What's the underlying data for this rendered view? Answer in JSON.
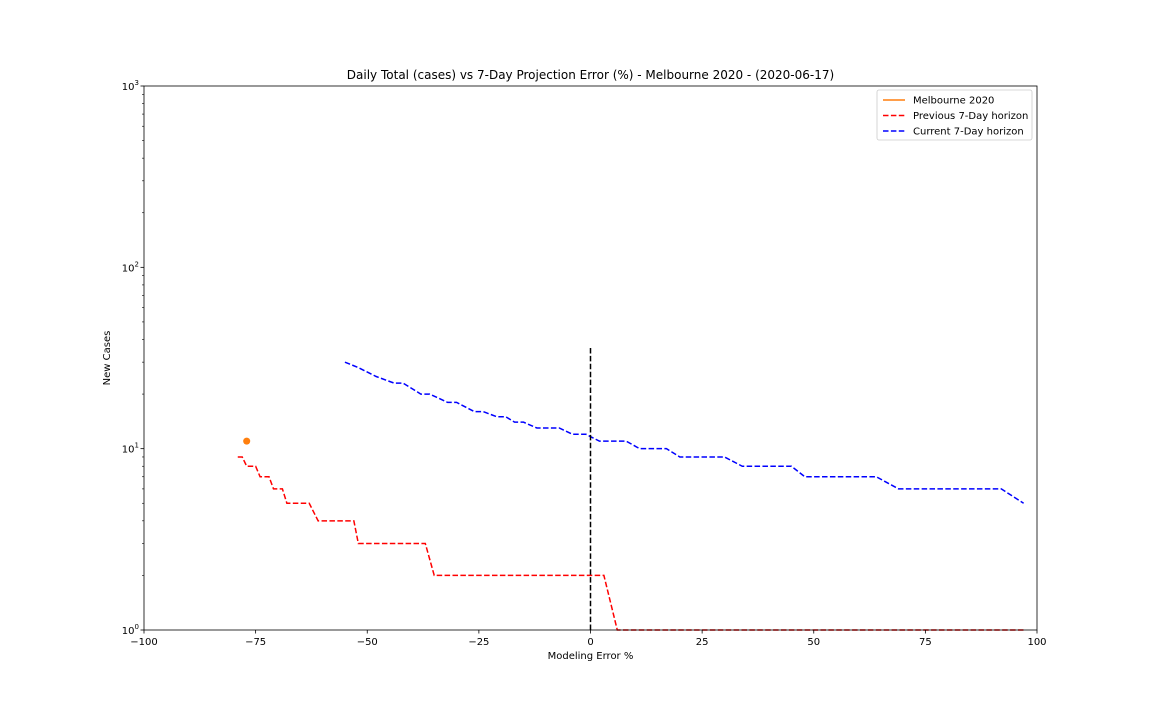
{
  "chart_data": {
    "type": "line",
    "title": "Daily Total (cases) vs 7-Day Projection Error (%) - Melbourne 2020 - (2020-06-17)",
    "xlabel": "Modeling Error %",
    "ylabel": "New Cases",
    "xlim": [
      -100,
      100
    ],
    "ylim": [
      1,
      1000
    ],
    "yscale": "log",
    "grid": false,
    "legend_position": "top-right",
    "x_ticks": [
      -100,
      -75,
      -50,
      -25,
      0,
      25,
      50,
      75,
      100
    ],
    "x_tick_labels": [
      "−100",
      "−75",
      "−50",
      "−25",
      "0",
      "25",
      "50",
      "75",
      "100"
    ],
    "y_ticks": [
      {
        "value": 1,
        "base": "10",
        "exp": "0"
      },
      {
        "value": 10,
        "base": "10",
        "exp": "1"
      },
      {
        "value": 100,
        "base": "10",
        "exp": "2"
      },
      {
        "value": 1000,
        "base": "10",
        "exp": "3"
      }
    ],
    "series": [
      {
        "name": "Melbourne 2020",
        "color": "#ff7f0e",
        "style": "point",
        "points": [
          [
            -77,
            11
          ]
        ]
      },
      {
        "name": "Previous 7-Day horizon",
        "color": "#ff0000",
        "style": "dashed",
        "points": [
          [
            -79,
            9
          ],
          [
            -78,
            9
          ],
          [
            -77,
            8
          ],
          [
            -75,
            8
          ],
          [
            -74,
            7
          ],
          [
            -72,
            7
          ],
          [
            -71,
            6
          ],
          [
            -69,
            6
          ],
          [
            -68,
            5
          ],
          [
            -63,
            5
          ],
          [
            -61,
            4
          ],
          [
            -53,
            4
          ],
          [
            -52,
            3
          ],
          [
            -37,
            3
          ],
          [
            -35,
            2
          ],
          [
            2,
            2
          ],
          [
            3,
            2
          ],
          [
            6,
            1
          ],
          [
            97,
            1
          ]
        ]
      },
      {
        "name": "Current 7-Day horizon",
        "color": "#0000ff",
        "style": "dashed",
        "points": [
          [
            -55,
            30
          ],
          [
            -52,
            28
          ],
          [
            -48,
            25
          ],
          [
            -44,
            23
          ],
          [
            -42,
            23
          ],
          [
            -38,
            20
          ],
          [
            -36,
            20
          ],
          [
            -32,
            18
          ],
          [
            -30,
            18
          ],
          [
            -26,
            16
          ],
          [
            -24,
            16
          ],
          [
            -21,
            15
          ],
          [
            -19,
            15
          ],
          [
            -17,
            14
          ],
          [
            -15,
            14
          ],
          [
            -12,
            13
          ],
          [
            -7,
            13
          ],
          [
            -4,
            12
          ],
          [
            -1,
            12
          ],
          [
            2,
            11
          ],
          [
            8,
            11
          ],
          [
            11,
            10
          ],
          [
            17,
            10
          ],
          [
            20,
            9
          ],
          [
            30,
            9
          ],
          [
            34,
            8
          ],
          [
            45,
            8
          ],
          [
            48,
            7
          ],
          [
            64,
            7
          ],
          [
            69,
            6
          ],
          [
            92,
            6
          ],
          [
            97,
            5
          ]
        ]
      },
      {
        "name": "",
        "color": "#000000",
        "style": "dashed",
        "points": [
          [
            0,
            1
          ],
          [
            0,
            36
          ]
        ]
      }
    ]
  },
  "legend": [
    {
      "label": "Melbourne 2020",
      "color": "#ff7f0e",
      "style": "solid"
    },
    {
      "label": "Previous 7-Day horizon",
      "color": "#ff0000",
      "style": "dashed"
    },
    {
      "label": "Current 7-Day horizon",
      "color": "#0000ff",
      "style": "dashed"
    }
  ]
}
